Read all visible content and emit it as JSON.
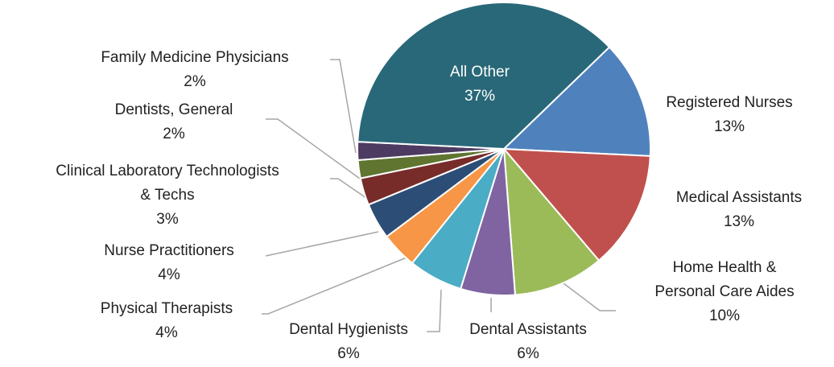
{
  "chart_data": {
    "type": "pie",
    "categories": [
      "Registered Nurses",
      "Medical Assistants",
      "Home Health & Personal Care Aides",
      "Dental Assistants",
      "Dental Hygienists",
      "Physical Therapists",
      "Nurse Practitioners",
      "Clinical Laboratory Technologists & Techs",
      "Dentists, General",
      "Family Medicine Physicians",
      "All Other"
    ],
    "values": [
      13,
      13,
      10,
      6,
      6,
      4,
      4,
      3,
      2,
      2,
      37
    ],
    "value_labels": [
      "13%",
      "13%",
      "10%",
      "6%",
      "6%",
      "4%",
      "4%",
      "3%",
      "2%",
      "2%",
      "37%"
    ],
    "colors": [
      "#4f81bd",
      "#c0504d",
      "#9bbb59",
      "#8064a2",
      "#4bacc6",
      "#f79646",
      "#2c4d75",
      "#772c2a",
      "#5f7530",
      "#4d3b62",
      "#296878"
    ]
  }
}
